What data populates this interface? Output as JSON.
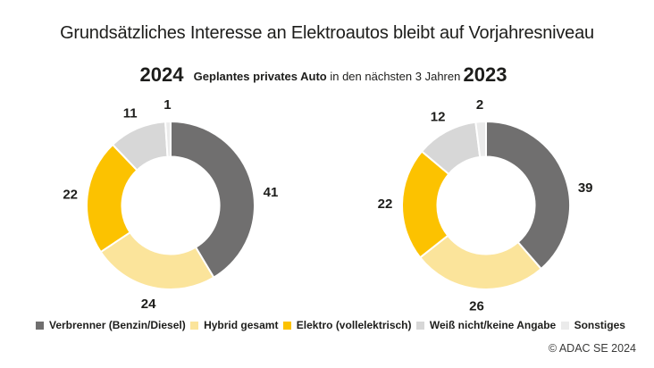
{
  "title": "Grundsätzliches Interesse an Elektroautos bleibt auf Vorjahresniveau",
  "subtitle": {
    "bold": "Geplantes privates Auto",
    "regular": " in den nächsten 3 Jahren"
  },
  "header": {
    "year_left": "2024",
    "year_right": "2023"
  },
  "legend": {
    "items": [
      {
        "label": "Verbrenner (Benzin/Diesel)",
        "color": "#706F6F"
      },
      {
        "label": "Hybrid gesamt",
        "color": "#FBE49B"
      },
      {
        "label": "Elektro (vollelektrisch)",
        "color": "#FCC200"
      },
      {
        "label": "Weiß nicht/keine Angabe",
        "color": "#D7D7D7"
      },
      {
        "label": "Sonstiges",
        "color": "#EBEBEB"
      }
    ]
  },
  "footer": {
    "copyright": "© ADAC SE 2024"
  },
  "chart_data": {
    "type": "pie",
    "variant": "donut",
    "title": "Geplantes privates Auto in den nächsten 3 Jahren",
    "categories": [
      "Verbrenner (Benzin/Diesel)",
      "Hybrid gesamt",
      "Elektro (vollelektrisch)",
      "Weiß nicht/keine Angabe",
      "Sonstiges"
    ],
    "series": [
      {
        "name": "2024",
        "values": [
          41,
          24,
          22,
          11,
          1
        ]
      },
      {
        "name": "2023",
        "values": [
          39,
          26,
          22,
          12,
          2
        ]
      }
    ],
    "segment_colors": [
      "#706F6F",
      "#FBE49B",
      "#FCC200",
      "#D7D7D7",
      "#EBEBEB"
    ],
    "start_angle_deg": 0,
    "direction": "clockwise",
    "inner_radius_ratio": 0.58,
    "data_labels": "outside",
    "legend_position": "bottom"
  }
}
